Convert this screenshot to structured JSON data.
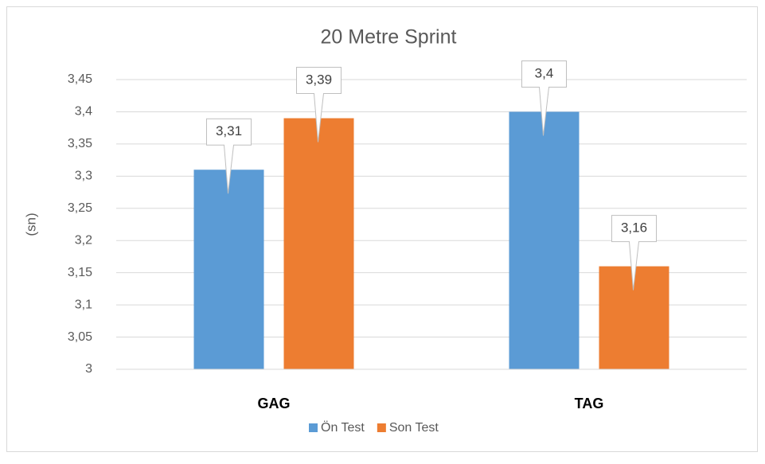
{
  "chart_data": {
    "type": "bar",
    "title": "20 Metre Sprint",
    "y_label": "(sn)",
    "categories": [
      "GAG",
      "TAG"
    ],
    "series": [
      {
        "name": "Ön Test",
        "color": "#5b9bd5",
        "values": [
          3.31,
          3.4
        ],
        "value_labels": [
          "3,31",
          "3,4"
        ]
      },
      {
        "name": "Son Test",
        "color": "#ed7d31",
        "values": [
          3.39,
          3.16
        ],
        "value_labels": [
          "3,39",
          "3,16"
        ]
      }
    ],
    "ylim": [
      3,
      3.45
    ],
    "yticks": [
      3,
      {
        "value": 3.05,
        "label": "3,05"
      },
      {
        "value": 3.1,
        "label": "3,1"
      },
      {
        "value": 3.15,
        "label": "3,15"
      },
      {
        "value": 3.2,
        "label": "3,2"
      },
      {
        "value": 3.25,
        "label": "3,25"
      },
      {
        "value": 3.3,
        "label": "3,3"
      },
      {
        "value": 3.35,
        "label": "3,35"
      },
      {
        "value": 3.4,
        "label": "3,4"
      },
      {
        "value": 3.45,
        "label": "3,45"
      }
    ],
    "grid": true,
    "legend": "bottom"
  }
}
